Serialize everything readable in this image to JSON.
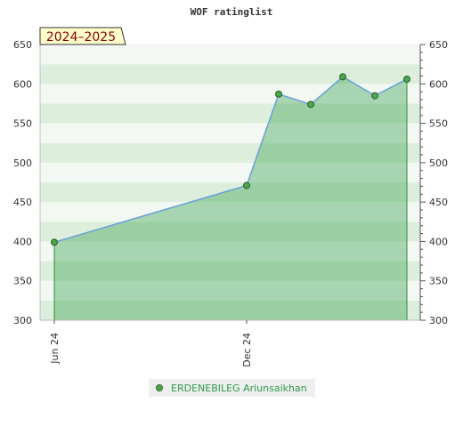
{
  "chart_data": {
    "type": "area",
    "title": "WOF ratinglist",
    "badge": "2024–2025",
    "xlabel": "",
    "ylabel": "",
    "ylim": [
      300,
      650
    ],
    "yticks": [
      300,
      350,
      400,
      450,
      500,
      550,
      600,
      650
    ],
    "x_labels": [
      {
        "label": "Jun 24",
        "x": 0
      },
      {
        "label": "Dec 24",
        "x": 6
      }
    ],
    "x_range": [
      0,
      11.5
    ],
    "grid": true,
    "legend_position": "bottom-center",
    "series": [
      {
        "name": "ERDENEBILEG Ariunsaikhan",
        "x": [
          0,
          6,
          7,
          8,
          9,
          10,
          11
        ],
        "values": [
          399,
          471,
          587,
          574,
          609,
          585,
          606
        ]
      }
    ],
    "colors": {
      "line": "#6aa0d8",
      "area": "#3fa556",
      "marker": "#4aa84a",
      "badge_bg": "#ffffcc",
      "legend_text": "#2e9a4e"
    }
  }
}
